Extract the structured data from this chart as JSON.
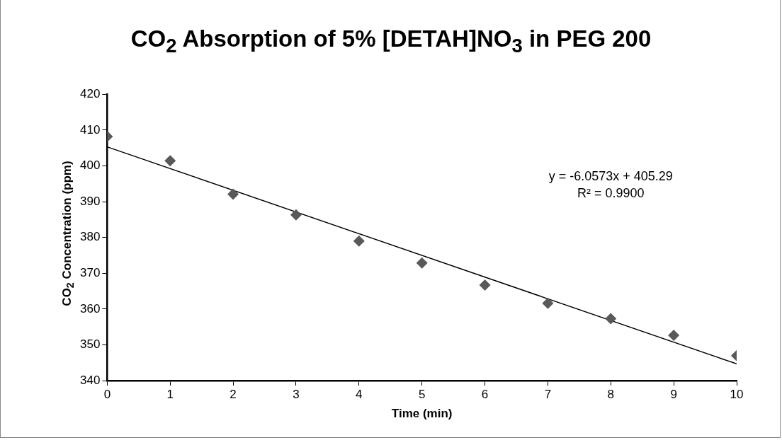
{
  "chart_data": {
    "type": "scatter",
    "title": "CO$_{2}$ Absorption of 5% [DETAH]NO$_{3}$ in PEG 200",
    "xlabel": "Time (min)",
    "ylabel": "CO$_{2}$ Concentration (ppm)",
    "x": [
      0,
      1,
      2,
      3,
      4,
      5,
      6,
      7,
      8,
      9,
      10
    ],
    "series": [
      {
        "color": "#595959",
        "marker": "diamond",
        "values": [
          408.2,
          401.4,
          392.1,
          386.3,
          379.0,
          372.9,
          366.7,
          361.6,
          357.3,
          352.7,
          347.0
        ]
      },
      {
        "type": "line",
        "color": "#000000",
        "marker": "none",
        "x": [
          0,
          10
        ],
        "values": [
          405.3,
          344.7
        ]
      }
    ],
    "annotations": [
      "y = -6.0573x + 405.29",
      "R² = 0.9900"
    ],
    "xlim": [
      0,
      10
    ],
    "xticks": [
      0,
      1,
      2,
      3,
      4,
      5,
      6,
      7,
      8,
      9,
      10
    ],
    "ylim": [
      340,
      420
    ],
    "yticks": [
      340,
      350,
      360,
      370,
      380,
      390,
      400,
      410,
      420
    ],
    "grid": false,
    "legend": false
  }
}
